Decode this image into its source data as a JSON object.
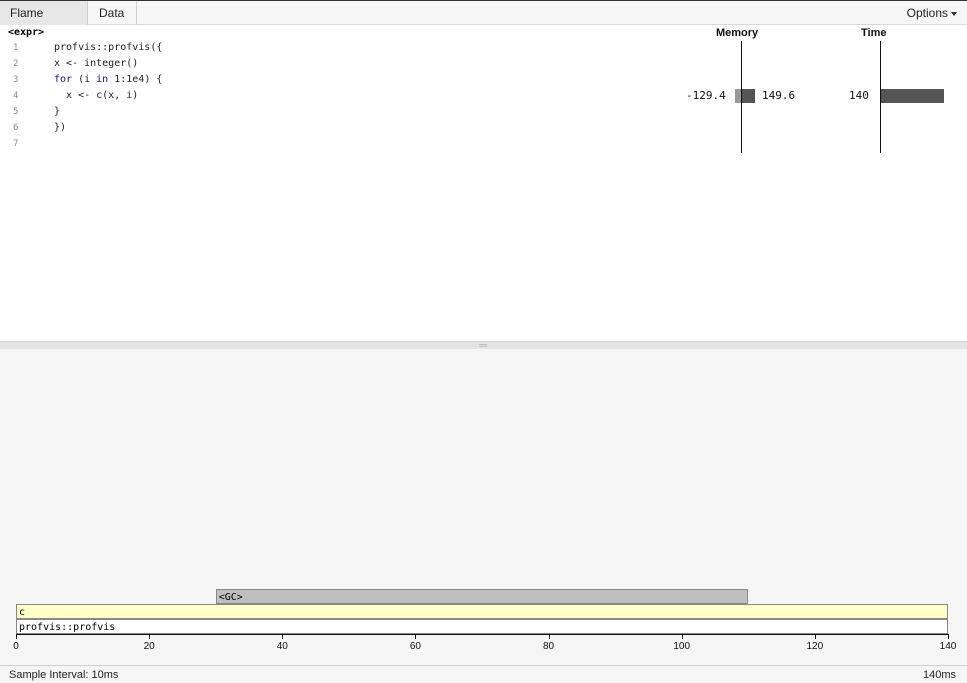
{
  "toolbar": {
    "tabs": [
      "Flame Graph",
      "Data"
    ],
    "options_label": "Options"
  },
  "code": {
    "expr_label": "<expr>",
    "memory_header": "Memory",
    "time_header": "Time",
    "lines": [
      {
        "num": "1",
        "text": "profvis::profvis({"
      },
      {
        "num": "2",
        "text": "x <- integer()"
      },
      {
        "num": "3",
        "text": "for (i in 1:1e4) {"
      },
      {
        "num": "4",
        "text": "  x <- c(x, i)"
      },
      {
        "num": "5",
        "text": "}"
      },
      {
        "num": "6",
        "text": "})"
      },
      {
        "num": "7",
        "text": ""
      }
    ],
    "line4_metrics": {
      "memory_deallocated": "-129.4",
      "memory_allocated": "149.6",
      "time_ms": "140"
    }
  },
  "flame_frames": [
    {
      "label": "<GC>",
      "start": 30,
      "end": 110,
      "depth": 2,
      "color": "#bfbfbf"
    },
    {
      "label": "c",
      "start": 0,
      "end": 140,
      "depth": 1,
      "color": "#ffffc8"
    },
    {
      "label": "profvis::profvis",
      "start": 0,
      "end": 140,
      "depth": 0,
      "color": "#ffffff"
    }
  ],
  "axis": {
    "min": 0,
    "max": 140,
    "ticks": [
      "0",
      "20",
      "40",
      "60",
      "80",
      "100",
      "120",
      "140"
    ]
  },
  "status": {
    "sample_interval": "Sample Interval: 10ms",
    "total_time": "140ms"
  },
  "colors": {
    "bar_dark": "#555555",
    "bar_light": "#999999"
  }
}
